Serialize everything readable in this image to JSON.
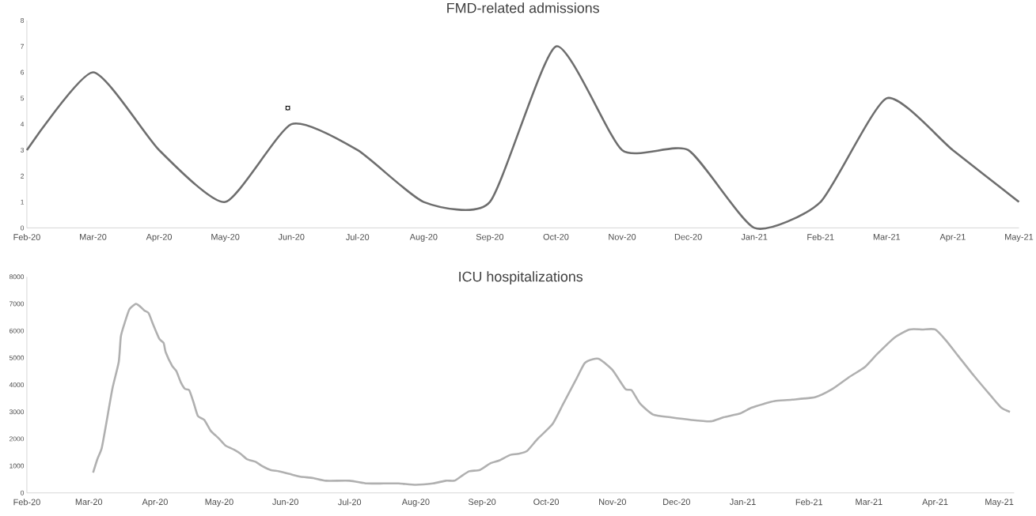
{
  "chart_data": [
    {
      "type": "line",
      "title": "FMD-related admissions",
      "color": "#6e6e6e",
      "categories": [
        "Feb-20",
        "Mar-20",
        "Apr-20",
        "May-20",
        "Jun-20",
        "Jul-20",
        "Aug-20",
        "Sep-20",
        "Oct-20",
        "Nov-20",
        "Dec-20",
        "Jan-21",
        "Feb-21",
        "Mar-21",
        "Apr-21",
        "May-21"
      ],
      "values": [
        3,
        6,
        3,
        1,
        4,
        3,
        1,
        1,
        7,
        3,
        3,
        0,
        1,
        5,
        3,
        1
      ],
      "ylim": [
        0,
        8
      ],
      "yticks": [
        0,
        1,
        2,
        3,
        4,
        5,
        6,
        7,
        8
      ],
      "annotations": [
        "¤"
      ]
    },
    {
      "type": "line",
      "title": "ICU hospitalizations",
      "color": "#b0b0b0",
      "x": [
        "2020-03-03",
        "2020-03-05",
        "2020-03-07",
        "2020-03-09",
        "2020-03-12",
        "2020-03-15",
        "2020-03-16",
        "2020-03-18",
        "2020-03-20",
        "2020-03-23",
        "2020-03-25",
        "2020-03-27",
        "2020-03-29",
        "2020-03-31",
        "2020-04-03",
        "2020-04-05",
        "2020-04-06",
        "2020-04-09",
        "2020-04-11",
        "2020-04-13",
        "2020-04-15",
        "2020-04-17",
        "2020-04-19",
        "2020-04-21",
        "2020-04-24",
        "2020-04-27",
        "2020-04-29",
        "2020-05-01",
        "2020-05-04",
        "2020-05-08",
        "2020-05-11",
        "2020-05-14",
        "2020-05-18",
        "2020-05-21",
        "2020-05-25",
        "2020-05-29",
        "2020-06-03",
        "2020-06-08",
        "2020-06-14",
        "2020-06-20",
        "2020-07-01",
        "2020-07-09",
        "2020-07-17",
        "2020-07-24",
        "2020-08-01",
        "2020-08-09",
        "2020-08-15",
        "2020-08-19",
        "2020-08-22",
        "2020-08-26",
        "2020-08-31",
        "2020-09-05",
        "2020-09-09",
        "2020-09-14",
        "2020-09-18",
        "2020-09-22",
        "2020-09-27",
        "2020-10-04",
        "2020-10-09",
        "2020-10-15",
        "2020-10-19",
        "2020-10-23",
        "2020-10-26",
        "2020-11-01",
        "2020-11-07",
        "2020-11-10",
        "2020-11-14",
        "2020-11-20",
        "2020-11-28",
        "2020-12-08",
        "2020-12-17",
        "2020-12-23",
        "2020-12-31",
        "2021-01-05",
        "2021-01-11",
        "2021-01-16",
        "2021-01-24",
        "2021-02-04",
        "2021-02-12",
        "2021-02-20",
        "2021-02-27",
        "2021-03-05",
        "2021-03-13",
        "2021-03-20",
        "2021-03-26",
        "2021-04-01",
        "2021-04-06",
        "2021-04-12",
        "2021-04-19",
        "2021-04-27",
        "2021-05-02",
        "2021-05-06"
      ],
      "values": [
        750,
        1250,
        1650,
        2500,
        3850,
        4850,
        5800,
        6350,
        6800,
        7000,
        6900,
        6750,
        6650,
        6250,
        5700,
        5550,
        5200,
        4700,
        4500,
        4100,
        3850,
        3800,
        3350,
        2850,
        2700,
        2300,
        2150,
        2000,
        1750,
        1600,
        1450,
        1250,
        1150,
        1000,
        850,
        800,
        700,
        600,
        550,
        450,
        450,
        350,
        350,
        350,
        300,
        350,
        450,
        450,
        600,
        800,
        850,
        1100,
        1200,
        1400,
        1450,
        1550,
        2000,
        2550,
        3300,
        4200,
        4800,
        4950,
        4950,
        4550,
        3850,
        3800,
        3300,
        2900,
        2800,
        2700,
        2650,
        2800,
        2950,
        3150,
        3300,
        3400,
        3450,
        3550,
        3850,
        4300,
        4650,
        5150,
        5750,
        6050,
        6050,
        6050,
        5650,
        5050,
        4350,
        3600,
        3150,
        3000
      ],
      "xlim": [
        "2020-02-01",
        "2021-05-08"
      ],
      "xticks": [
        {
          "value": "2020-02-01",
          "label": "Feb-20"
        },
        {
          "value": "2020-03-01",
          "label": "Mar-20"
        },
        {
          "value": "2020-04-01",
          "label": "Apr-20"
        },
        {
          "value": "2020-05-01",
          "label": "May-20"
        },
        {
          "value": "2020-06-01",
          "label": "Jun-20"
        },
        {
          "value": "2020-07-01",
          "label": "Jul-20"
        },
        {
          "value": "2020-08-01",
          "label": "Aug-20"
        },
        {
          "value": "2020-09-01",
          "label": "Sep-20"
        },
        {
          "value": "2020-10-01",
          "label": "Oct-20"
        },
        {
          "value": "2020-11-01",
          "label": "Nov-20"
        },
        {
          "value": "2020-12-01",
          "label": "Dec-20"
        },
        {
          "value": "2021-01-01",
          "label": "Jan-21"
        },
        {
          "value": "2021-02-01",
          "label": "Feb-21"
        },
        {
          "value": "2021-03-01",
          "label": "Mar-21"
        },
        {
          "value": "2021-04-01",
          "label": "Apr-21"
        },
        {
          "value": "2021-05-01",
          "label": "May-21"
        }
      ],
      "ylim": [
        0,
        8000
      ],
      "yticks": [
        0,
        1000,
        2000,
        3000,
        4000,
        5000,
        6000,
        7000,
        8000
      ]
    }
  ]
}
